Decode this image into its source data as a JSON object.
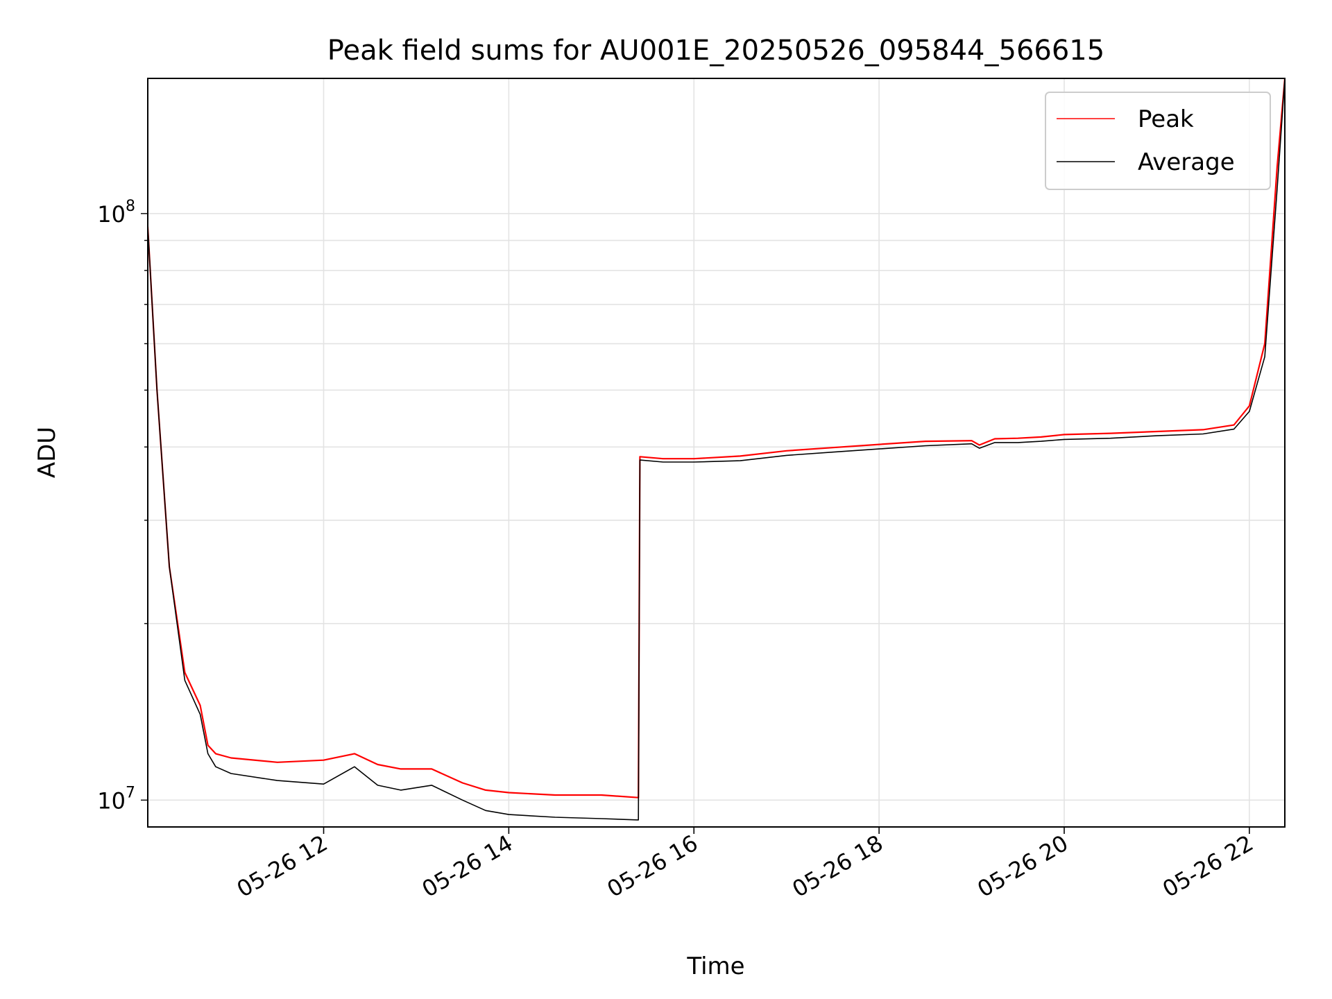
{
  "chart_data": {
    "type": "line",
    "title": "Peak field sums for AU001E_20250526_095844_566615",
    "xlabel": "Time",
    "ylabel": "ADU",
    "yscale": "log",
    "xlim": [
      "05-26 10:06",
      "05-26 22:23"
    ],
    "ylim": [
      9000000,
      170000000
    ],
    "x_ticks": [
      "05-26 12",
      "05-26 14",
      "05-26 16",
      "05-26 18",
      "05-26 20",
      "05-26 22"
    ],
    "y_ticks": [
      {
        "base": "10",
        "exp": "7"
      },
      {
        "base": "10",
        "exp": "8"
      }
    ],
    "grid": true,
    "legend": {
      "position": "upper right",
      "entries": [
        "Peak",
        "Average"
      ]
    },
    "colors": {
      "Peak": "#ff0000",
      "Average": "#000000"
    },
    "series": [
      {
        "name": "Average",
        "x": [
          "05-26 10:06",
          "05-26 10:12",
          "05-26 10:20",
          "05-26 10:30",
          "05-26 10:40",
          "05-26 10:45",
          "05-26 10:50",
          "05-26 11:00",
          "05-26 11:30",
          "05-26 12:00",
          "05-26 12:20",
          "05-26 12:35",
          "05-26 12:50",
          "05-26 13:10",
          "05-26 13:30",
          "05-26 13:45",
          "05-26 14:00",
          "05-26 14:30",
          "05-26 15:00",
          "05-26 15:24",
          "05-26 15:25",
          "05-26 15:40",
          "05-26 16:00",
          "05-26 16:30",
          "05-26 17:00",
          "05-26 17:30",
          "05-26 18:00",
          "05-26 18:30",
          "05-26 19:00",
          "05-26 19:05",
          "05-26 19:15",
          "05-26 19:30",
          "05-26 19:45",
          "05-26 20:00",
          "05-26 20:30",
          "05-26 21:00",
          "05-26 21:30",
          "05-26 21:50",
          "05-26 22:00",
          "05-26 22:10",
          "05-26 22:18",
          "05-26 22:23"
        ],
        "y": [
          95000000,
          50000000,
          25000000,
          16000000,
          14000000,
          12000000,
          11400000,
          11100000,
          10800000,
          10650000,
          11400000,
          10600000,
          10400000,
          10600000,
          10000000,
          9600000,
          9450000,
          9350000,
          9300000,
          9250000,
          38000000,
          37700000,
          37700000,
          37900000,
          38700000,
          39200000,
          39700000,
          40200000,
          40500000,
          39800000,
          40700000,
          40700000,
          40900000,
          41200000,
          41400000,
          41800000,
          42100000,
          42900000,
          46000000,
          57000000,
          110000000,
          170000000
        ]
      },
      {
        "name": "Peak",
        "x": [
          "05-26 10:06",
          "05-26 10:12",
          "05-26 10:20",
          "05-26 10:30",
          "05-26 10:40",
          "05-26 10:45",
          "05-26 10:50",
          "05-26 11:00",
          "05-26 11:30",
          "05-26 12:00",
          "05-26 12:20",
          "05-26 12:35",
          "05-26 12:50",
          "05-26 13:10",
          "05-26 13:30",
          "05-26 13:45",
          "05-26 14:00",
          "05-26 14:30",
          "05-26 15:00",
          "05-26 15:24",
          "05-26 15:25",
          "05-26 15:40",
          "05-26 16:00",
          "05-26 16:30",
          "05-26 17:00",
          "05-26 17:30",
          "05-26 18:00",
          "05-26 18:30",
          "05-26 19:00",
          "05-26 19:05",
          "05-26 19:15",
          "05-26 19:30",
          "05-26 19:45",
          "05-26 20:00",
          "05-26 20:30",
          "05-26 21:00",
          "05-26 21:30",
          "05-26 21:50",
          "05-26 22:00",
          "05-26 22:10",
          "05-26 22:18",
          "05-26 22:23"
        ],
        "y": [
          95000000,
          50000000,
          25000000,
          16500000,
          14500000,
          12400000,
          12000000,
          11800000,
          11600000,
          11700000,
          12000000,
          11500000,
          11300000,
          11300000,
          10700000,
          10400000,
          10300000,
          10200000,
          10200000,
          10100000,
          38500000,
          38200000,
          38200000,
          38600000,
          39400000,
          39900000,
          40400000,
          40900000,
          41000000,
          40300000,
          41300000,
          41400000,
          41600000,
          42000000,
          42200000,
          42500000,
          42800000,
          43600000,
          47000000,
          60000000,
          120000000,
          170000000
        ]
      }
    ]
  }
}
